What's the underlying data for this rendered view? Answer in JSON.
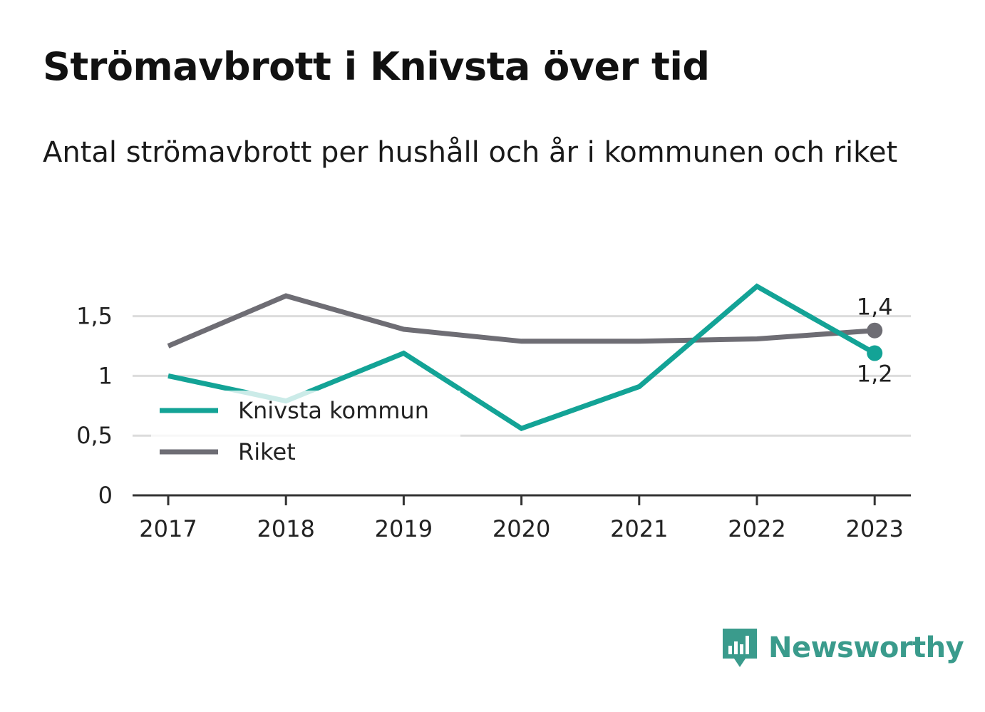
{
  "title": "Strömavbrott i Knivsta över tid",
  "subtitle": "Antal strömavbrott per hushåll och år i kommunen och riket",
  "brand": {
    "name": "Newsworthy",
    "icon": "newsworthy-logo-icon",
    "color": "#3a9b8c"
  },
  "chart_data": {
    "type": "line",
    "categories": [
      "2017",
      "2018",
      "2019",
      "2020",
      "2021",
      "2022",
      "2023"
    ],
    "ylim": [
      0,
      1.85
    ],
    "y_ticks": [
      {
        "value": 0,
        "label": "0"
      },
      {
        "value": 0.5,
        "label": "0,5"
      },
      {
        "value": 1,
        "label": "1"
      },
      {
        "value": 1.5,
        "label": "1,5"
      }
    ],
    "grid": true,
    "legend_position": "left",
    "series": [
      {
        "name": "Knivsta kommun",
        "color": "#13a396",
        "values": [
          1.0,
          0.79,
          1.19,
          0.56,
          0.91,
          1.75,
          1.19
        ],
        "end_label": "1,2",
        "end_label_position": "below"
      },
      {
        "name": "Riket",
        "color": "#6e6d74",
        "values": [
          1.25,
          1.67,
          1.39,
          1.29,
          1.29,
          1.31,
          1.38
        ],
        "end_label": "1,4",
        "end_label_position": "above"
      }
    ]
  }
}
